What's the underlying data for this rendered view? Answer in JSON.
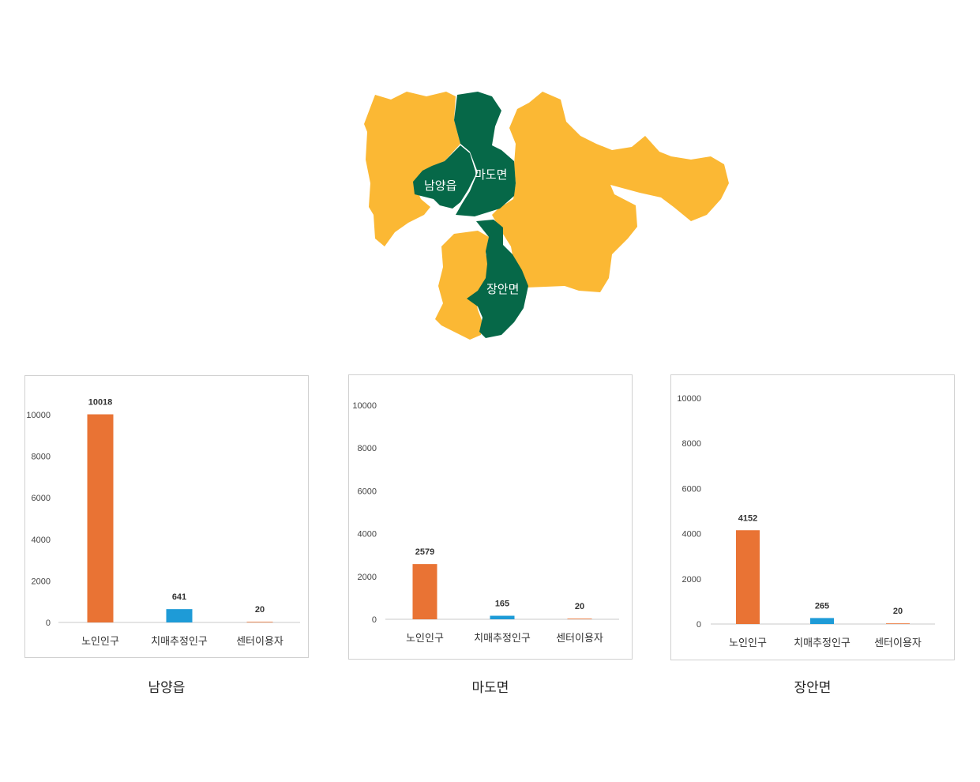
{
  "map": {
    "regions": [
      {
        "name": "남양읍",
        "color": "#066848"
      },
      {
        "name": "마도면",
        "color": "#066848"
      },
      {
        "name": "장안면",
        "color": "#066848"
      }
    ],
    "other_color": "#fbb834"
  },
  "captions": [
    "남양읍",
    "마도면",
    "장안면"
  ],
  "chart_data": [
    {
      "type": "bar",
      "title": "남양읍",
      "categories": [
        "노인인구",
        "치매추정인구",
        "센터이용자"
      ],
      "values": [
        10018,
        641,
        20
      ],
      "colors": [
        "#e97334",
        "#1e9bd7",
        "#e97334"
      ],
      "ylim": [
        0,
        10000
      ],
      "yticks": [
        0,
        2000,
        4000,
        6000,
        8000,
        10000
      ]
    },
    {
      "type": "bar",
      "title": "마도면",
      "categories": [
        "노인인구",
        "치매추정인구",
        "센터이용자"
      ],
      "values": [
        2579,
        165,
        20
      ],
      "colors": [
        "#e97334",
        "#1e9bd7",
        "#e97334"
      ],
      "ylim": [
        0,
        10000
      ],
      "yticks": [
        0,
        2000,
        4000,
        6000,
        8000,
        10000
      ]
    },
    {
      "type": "bar",
      "title": "장안면",
      "categories": [
        "노인인구",
        "치매추정인구",
        "센터이용자"
      ],
      "values": [
        4152,
        265,
        20
      ],
      "colors": [
        "#e97334",
        "#1e9bd7",
        "#e97334"
      ],
      "ylim": [
        0,
        10000
      ],
      "yticks": [
        0,
        2000,
        4000,
        6000,
        8000,
        10000
      ]
    }
  ]
}
